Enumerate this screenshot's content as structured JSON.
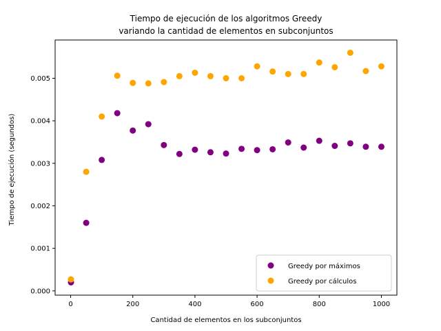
{
  "chart_data": {
    "type": "scatter",
    "title": "Tiempo de ejecución de los algoritmos Greedy",
    "subtitle": "variando la cantidad de elementos en subconjuntos",
    "xlabel": "Cantidad de elementos en los subconjuntos",
    "ylabel": "Tiempo de ejecución (segundos)",
    "xlim": [
      -50,
      1050
    ],
    "ylim": [
      -0.0001,
      0.0059
    ],
    "xticks": [
      0,
      200,
      400,
      600,
      800,
      1000
    ],
    "xtick_labels": [
      "0",
      "200",
      "400",
      "600",
      "800",
      "1000"
    ],
    "yticks": [
      0.0,
      0.001,
      0.002,
      0.003,
      0.004,
      0.005
    ],
    "ytick_labels": [
      "0.000",
      "0.001",
      "0.002",
      "0.003",
      "0.004",
      "0.005"
    ],
    "grid": false,
    "legend_position": "bottom-right",
    "series": [
      {
        "name": "Greedy por máximos",
        "color": "#800080",
        "x": [
          1,
          50,
          100,
          150,
          200,
          250,
          300,
          350,
          400,
          450,
          500,
          550,
          600,
          650,
          700,
          750,
          800,
          850,
          900,
          950,
          1000
        ],
        "y": [
          0.0002,
          0.0016,
          0.00308,
          0.00418,
          0.00377,
          0.00392,
          0.00343,
          0.00322,
          0.00332,
          0.00326,
          0.00323,
          0.00334,
          0.00331,
          0.00333,
          0.00349,
          0.00337,
          0.00353,
          0.00341,
          0.00347,
          0.00339,
          0.00339
        ]
      },
      {
        "name": "Greedy por cálculos",
        "color": "#FFA500",
        "x": [
          1,
          50,
          100,
          150,
          200,
          250,
          300,
          350,
          400,
          450,
          500,
          550,
          600,
          650,
          700,
          750,
          800,
          850,
          900,
          950,
          1000
        ],
        "y": [
          0.00027,
          0.0028,
          0.0041,
          0.00506,
          0.00489,
          0.00488,
          0.00491,
          0.00505,
          0.00513,
          0.00505,
          0.005,
          0.005,
          0.00528,
          0.00516,
          0.0051,
          0.0051,
          0.00537,
          0.00526,
          0.0056,
          0.00517,
          0.00528
        ]
      }
    ]
  }
}
